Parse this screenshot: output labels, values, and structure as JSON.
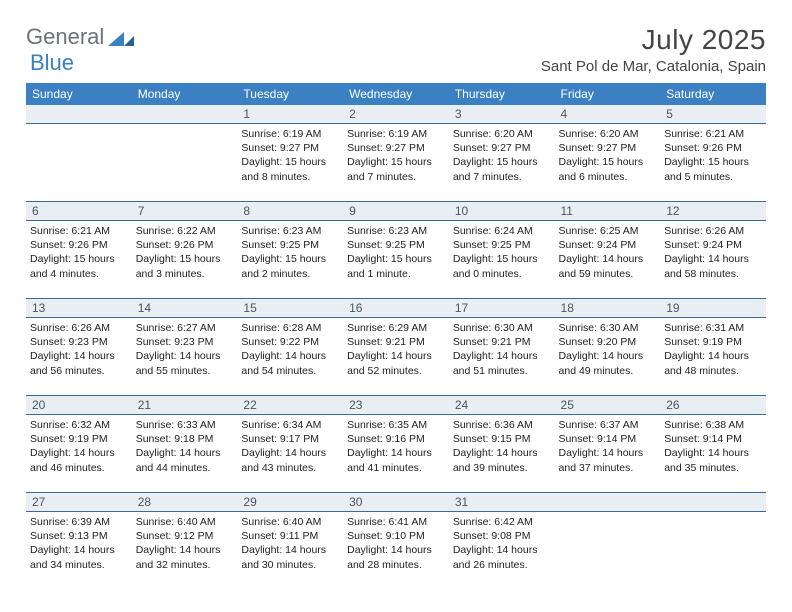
{
  "brand": {
    "part1": "General",
    "part2": "Blue"
  },
  "title": "July 2025",
  "location": "Sant Pol de Mar, Catalonia, Spain",
  "colors": {
    "header_bg": "#3a80c3",
    "header_text": "#ffffff",
    "daynum_bg": "#e9eef3",
    "daynum_text": "#4a5560",
    "border": "#3a6a9a",
    "body_text": "#222222",
    "brand_gray": "#6b7278",
    "brand_blue": "#3a80c3"
  },
  "weekdays": [
    "Sunday",
    "Monday",
    "Tuesday",
    "Wednesday",
    "Thursday",
    "Friday",
    "Saturday"
  ],
  "weeks": [
    [
      null,
      null,
      {
        "n": "1",
        "sunrise": "6:19 AM",
        "sunset": "9:27 PM",
        "day_h": "15",
        "day_m": "8"
      },
      {
        "n": "2",
        "sunrise": "6:19 AM",
        "sunset": "9:27 PM",
        "day_h": "15",
        "day_m": "7"
      },
      {
        "n": "3",
        "sunrise": "6:20 AM",
        "sunset": "9:27 PM",
        "day_h": "15",
        "day_m": "7"
      },
      {
        "n": "4",
        "sunrise": "6:20 AM",
        "sunset": "9:27 PM",
        "day_h": "15",
        "day_m": "6"
      },
      {
        "n": "5",
        "sunrise": "6:21 AM",
        "sunset": "9:26 PM",
        "day_h": "15",
        "day_m": "5"
      }
    ],
    [
      {
        "n": "6",
        "sunrise": "6:21 AM",
        "sunset": "9:26 PM",
        "day_h": "15",
        "day_m": "4"
      },
      {
        "n": "7",
        "sunrise": "6:22 AM",
        "sunset": "9:26 PM",
        "day_h": "15",
        "day_m": "3"
      },
      {
        "n": "8",
        "sunrise": "6:23 AM",
        "sunset": "9:25 PM",
        "day_h": "15",
        "day_m": "2"
      },
      {
        "n": "9",
        "sunrise": "6:23 AM",
        "sunset": "9:25 PM",
        "day_h": "15",
        "day_m": "1"
      },
      {
        "n": "10",
        "sunrise": "6:24 AM",
        "sunset": "9:25 PM",
        "day_h": "15",
        "day_m": "0"
      },
      {
        "n": "11",
        "sunrise": "6:25 AM",
        "sunset": "9:24 PM",
        "day_h": "14",
        "day_m": "59"
      },
      {
        "n": "12",
        "sunrise": "6:26 AM",
        "sunset": "9:24 PM",
        "day_h": "14",
        "day_m": "58"
      }
    ],
    [
      {
        "n": "13",
        "sunrise": "6:26 AM",
        "sunset": "9:23 PM",
        "day_h": "14",
        "day_m": "56"
      },
      {
        "n": "14",
        "sunrise": "6:27 AM",
        "sunset": "9:23 PM",
        "day_h": "14",
        "day_m": "55"
      },
      {
        "n": "15",
        "sunrise": "6:28 AM",
        "sunset": "9:22 PM",
        "day_h": "14",
        "day_m": "54"
      },
      {
        "n": "16",
        "sunrise": "6:29 AM",
        "sunset": "9:21 PM",
        "day_h": "14",
        "day_m": "52"
      },
      {
        "n": "17",
        "sunrise": "6:30 AM",
        "sunset": "9:21 PM",
        "day_h": "14",
        "day_m": "51"
      },
      {
        "n": "18",
        "sunrise": "6:30 AM",
        "sunset": "9:20 PM",
        "day_h": "14",
        "day_m": "49"
      },
      {
        "n": "19",
        "sunrise": "6:31 AM",
        "sunset": "9:19 PM",
        "day_h": "14",
        "day_m": "48"
      }
    ],
    [
      {
        "n": "20",
        "sunrise": "6:32 AM",
        "sunset": "9:19 PM",
        "day_h": "14",
        "day_m": "46"
      },
      {
        "n": "21",
        "sunrise": "6:33 AM",
        "sunset": "9:18 PM",
        "day_h": "14",
        "day_m": "44"
      },
      {
        "n": "22",
        "sunrise": "6:34 AM",
        "sunset": "9:17 PM",
        "day_h": "14",
        "day_m": "43"
      },
      {
        "n": "23",
        "sunrise": "6:35 AM",
        "sunset": "9:16 PM",
        "day_h": "14",
        "day_m": "41"
      },
      {
        "n": "24",
        "sunrise": "6:36 AM",
        "sunset": "9:15 PM",
        "day_h": "14",
        "day_m": "39"
      },
      {
        "n": "25",
        "sunrise": "6:37 AM",
        "sunset": "9:14 PM",
        "day_h": "14",
        "day_m": "37"
      },
      {
        "n": "26",
        "sunrise": "6:38 AM",
        "sunset": "9:14 PM",
        "day_h": "14",
        "day_m": "35"
      }
    ],
    [
      {
        "n": "27",
        "sunrise": "6:39 AM",
        "sunset": "9:13 PM",
        "day_h": "14",
        "day_m": "34"
      },
      {
        "n": "28",
        "sunrise": "6:40 AM",
        "sunset": "9:12 PM",
        "day_h": "14",
        "day_m": "32"
      },
      {
        "n": "29",
        "sunrise": "6:40 AM",
        "sunset": "9:11 PM",
        "day_h": "14",
        "day_m": "30"
      },
      {
        "n": "30",
        "sunrise": "6:41 AM",
        "sunset": "9:10 PM",
        "day_h": "14",
        "day_m": "28"
      },
      {
        "n": "31",
        "sunrise": "6:42 AM",
        "sunset": "9:08 PM",
        "day_h": "14",
        "day_m": "26"
      },
      null,
      null
    ]
  ],
  "labels": {
    "sunrise": "Sunrise:",
    "sunset": "Sunset:",
    "daylight": "Daylight:",
    "hours": "hours",
    "and": "and",
    "minutes": "minutes.",
    "minute": "minute."
  }
}
